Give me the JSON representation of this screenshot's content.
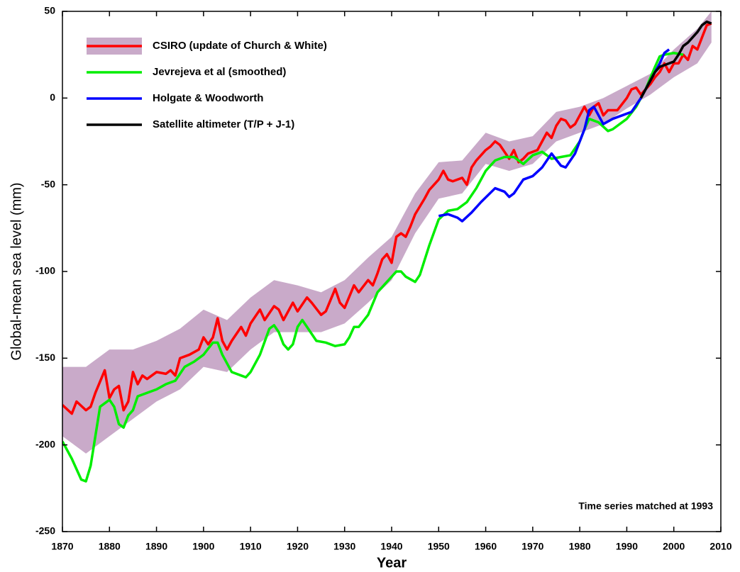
{
  "chart_data": {
    "type": "line",
    "xlabel": "Year",
    "ylabel": "Global-mean sea level (mm)",
    "annotation": "Time series matched at 1993",
    "xlim": [
      1870,
      2010
    ],
    "ylim": [
      -250,
      50
    ],
    "xticks": [
      1870,
      1880,
      1890,
      1900,
      1910,
      1920,
      1930,
      1940,
      1950,
      1960,
      1970,
      1980,
      1990,
      2000,
      2010
    ],
    "yticks": [
      -250,
      -200,
      -150,
      -100,
      -50,
      0,
      50
    ],
    "legend": "upper left",
    "series": [
      {
        "name": "CSIRO (update of Church & White)",
        "color": "#ff0000",
        "x": [
          1870,
          1872,
          1873,
          1875,
          1876,
          1877,
          1879,
          1880,
          1881,
          1882,
          1883,
          1884,
          1885,
          1886,
          1887,
          1888,
          1890,
          1892,
          1893,
          1894,
          1895,
          1897,
          1899,
          1900,
          1901,
          1902,
          1903,
          1904,
          1905,
          1906,
          1908,
          1909,
          1910,
          1912,
          1913,
          1915,
          1916,
          1917,
          1919,
          1920,
          1922,
          1923,
          1925,
          1926,
          1928,
          1929,
          1930,
          1932,
          1933,
          1935,
          1936,
          1937,
          1938,
          1939,
          1940,
          1941,
          1942,
          1943,
          1944,
          1945,
          1947,
          1948,
          1949,
          1950,
          1951,
          1952,
          1953,
          1955,
          1956,
          1957,
          1958,
          1960,
          1961,
          1962,
          1963,
          1964,
          1965,
          1966,
          1967,
          1968,
          1969,
          1971,
          1972,
          1973,
          1974,
          1975,
          1976,
          1977,
          1978,
          1979,
          1981,
          1982,
          1983,
          1984,
          1985,
          1986,
          1988,
          1990,
          1991,
          1992,
          1993,
          1994,
          1995,
          1996,
          1997,
          1998,
          1999,
          2000,
          2001,
          2002,
          2003,
          2004,
          2005,
          2006,
          2007,
          2008
        ],
        "values": [
          -177,
          -182,
          -175,
          -180,
          -178,
          -170,
          -157,
          -173,
          -168,
          -166,
          -180,
          -175,
          -158,
          -165,
          -160,
          -162,
          -158,
          -159,
          -157,
          -160,
          -150,
          -148,
          -145,
          -138,
          -142,
          -138,
          -127,
          -140,
          -145,
          -140,
          -132,
          -137,
          -130,
          -122,
          -128,
          -120,
          -122,
          -128,
          -118,
          -123,
          -115,
          -118,
          -125,
          -123,
          -110,
          -118,
          -121,
          -108,
          -112,
          -105,
          -108,
          -101,
          -93,
          -90,
          -95,
          -80,
          -78,
          -80,
          -74,
          -67,
          -58,
          -53,
          -50,
          -47,
          -42,
          -47,
          -48,
          -46,
          -50,
          -40,
          -36,
          -30,
          -28,
          -25,
          -27,
          -31,
          -35,
          -30,
          -37,
          -35,
          -32,
          -30,
          -25,
          -20,
          -23,
          -16,
          -12,
          -13,
          -17,
          -15,
          -5,
          -10,
          -5,
          -3,
          -10,
          -7,
          -7,
          0,
          5,
          6,
          2,
          5,
          8,
          12,
          15,
          20,
          15,
          20,
          20,
          25,
          22,
          30,
          28,
          35,
          42,
          43
        ],
        "band": {
          "color": "#c9aac9",
          "x": [
            1870,
            1875,
            1880,
            1885,
            1890,
            1895,
            1900,
            1905,
            1910,
            1915,
            1920,
            1925,
            1930,
            1935,
            1940,
            1945,
            1950,
            1955,
            1960,
            1965,
            1970,
            1975,
            1980,
            1985,
            1990,
            1995,
            2000,
            2005,
            2008
          ],
          "lower": [
            -195,
            -205,
            -195,
            -185,
            -175,
            -168,
            -155,
            -158,
            -145,
            -135,
            -135,
            -135,
            -130,
            -118,
            -105,
            -78,
            -58,
            -55,
            -38,
            -42,
            -38,
            -25,
            -20,
            -15,
            -6,
            2,
            12,
            20,
            32
          ],
          "upper": [
            -155,
            -155,
            -145,
            -145,
            -140,
            -133,
            -122,
            -128,
            -115,
            -105,
            -108,
            -112,
            -105,
            -92,
            -80,
            -55,
            -37,
            -36,
            -20,
            -25,
            -22,
            -8,
            -5,
            0,
            7,
            14,
            28,
            40,
            50
          ]
        }
      },
      {
        "name": "Jevrejeva et al (smoothed)",
        "color": "#00ee00",
        "x": [
          1870,
          1872,
          1874,
          1875,
          1876,
          1877,
          1878,
          1880,
          1881,
          1882,
          1883,
          1884,
          1885,
          1886,
          1888,
          1890,
          1892,
          1894,
          1896,
          1898,
          1900,
          1902,
          1903,
          1904,
          1906,
          1908,
          1909,
          1910,
          1912,
          1914,
          1915,
          1916,
          1917,
          1918,
          1919,
          1920,
          1921,
          1922,
          1924,
          1926,
          1928,
          1930,
          1931,
          1932,
          1933,
          1935,
          1937,
          1939,
          1941,
          1942,
          1943,
          1945,
          1946,
          1948,
          1950,
          1952,
          1954,
          1956,
          1958,
          1960,
          1962,
          1964,
          1966,
          1968,
          1970,
          1972,
          1974,
          1976,
          1978,
          1980,
          1981,
          1982,
          1984,
          1986,
          1987,
          1990,
          1992,
          1994,
          1996,
          1997,
          1998,
          2000,
          2002
        ],
        "values": [
          -198,
          -208,
          -220,
          -221,
          -212,
          -195,
          -178,
          -174,
          -178,
          -188,
          -190,
          -183,
          -180,
          -172,
          -170,
          -168,
          -165,
          -163,
          -155,
          -152,
          -148,
          -141,
          -141,
          -148,
          -158,
          -160,
          -161,
          -158,
          -148,
          -133,
          -131,
          -135,
          -142,
          -145,
          -142,
          -132,
          -128,
          -132,
          -140,
          -141,
          -143,
          -142,
          -138,
          -132,
          -132,
          -125,
          -112,
          -106,
          -100,
          -100,
          -103,
          -106,
          -102,
          -85,
          -70,
          -65,
          -64,
          -60,
          -52,
          -42,
          -36,
          -34,
          -34,
          -38,
          -33,
          -31,
          -35,
          -34,
          -33,
          -25,
          -18,
          -12,
          -14,
          -19,
          -18,
          -12,
          -5,
          5,
          18,
          24,
          25,
          26,
          25
        ]
      },
      {
        "name": "Holgate & Woodworth",
        "color": "#0000ff",
        "x": [
          1950,
          1952,
          1954,
          1955,
          1957,
          1959,
          1962,
          1964,
          1965,
          1966,
          1968,
          1970,
          1972,
          1974,
          1976,
          1977,
          1979,
          1981,
          1982,
          1983,
          1984,
          1985,
          1987,
          1989,
          1991,
          1993,
          1995,
          1997,
          1998,
          1999
        ],
        "values": [
          -68,
          -67,
          -69,
          -71,
          -66,
          -60,
          -52,
          -54,
          -57,
          -55,
          -47,
          -45,
          -40,
          -32,
          -39,
          -40,
          -32,
          -18,
          -7,
          -5,
          -10,
          -15,
          -12,
          -10,
          -8,
          0,
          10,
          20,
          26,
          28
        ]
      },
      {
        "name": "Satellite altimeter (T/P + J-1)",
        "color": "#000000",
        "x": [
          1993,
          1994,
          1995,
          1996,
          1997,
          1998,
          1999,
          2000,
          2001,
          2002,
          2003,
          2004,
          2005,
          2006,
          2007,
          2008
        ],
        "values": [
          0,
          5,
          10,
          15,
          18,
          19,
          20,
          21,
          25,
          30,
          32,
          35,
          38,
          42,
          44,
          43
        ]
      }
    ]
  }
}
